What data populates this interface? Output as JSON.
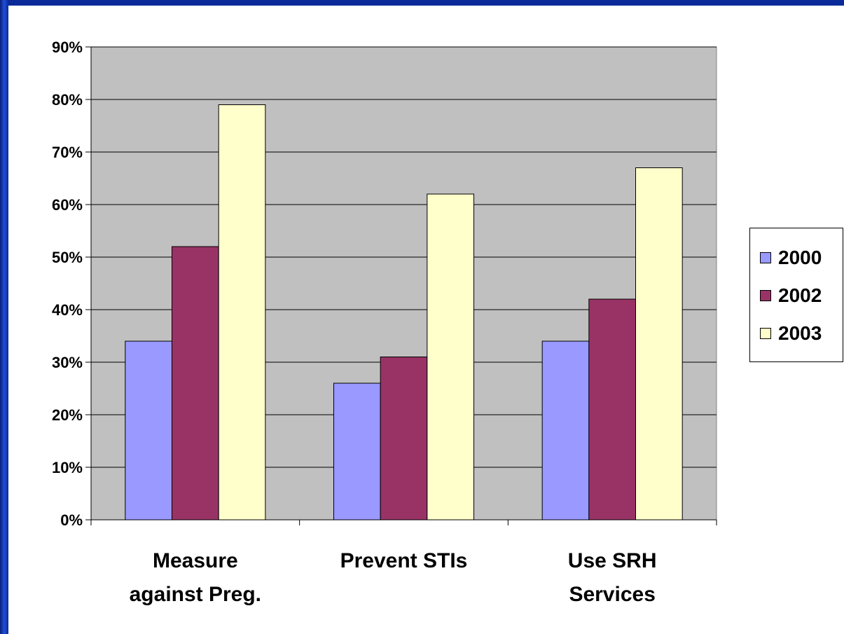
{
  "chart_data": {
    "type": "bar",
    "title": "",
    "xlabel": "",
    "ylabel": "",
    "ylim": [
      0,
      90
    ],
    "y_format": "percent",
    "y_ticks": [
      "0%",
      "10%",
      "20%",
      "30%",
      "40%",
      "50%",
      "60%",
      "70%",
      "80%",
      "90%"
    ],
    "categories": [
      [
        "Measure",
        "against Preg."
      ],
      [
        "Prevent STIs"
      ],
      [
        "Use SRH",
        "Services"
      ]
    ],
    "series": [
      {
        "name": "2000",
        "color": "#9999ff",
        "values": [
          34,
          26,
          34
        ]
      },
      {
        "name": "2002",
        "color": "#993366",
        "values": [
          52,
          31,
          42
        ]
      },
      {
        "name": "2003",
        "color": "#ffffcc",
        "values": [
          79,
          62,
          67
        ]
      }
    ],
    "grid": true,
    "plot_background": "#c0c0c0",
    "legend_position": "right"
  }
}
